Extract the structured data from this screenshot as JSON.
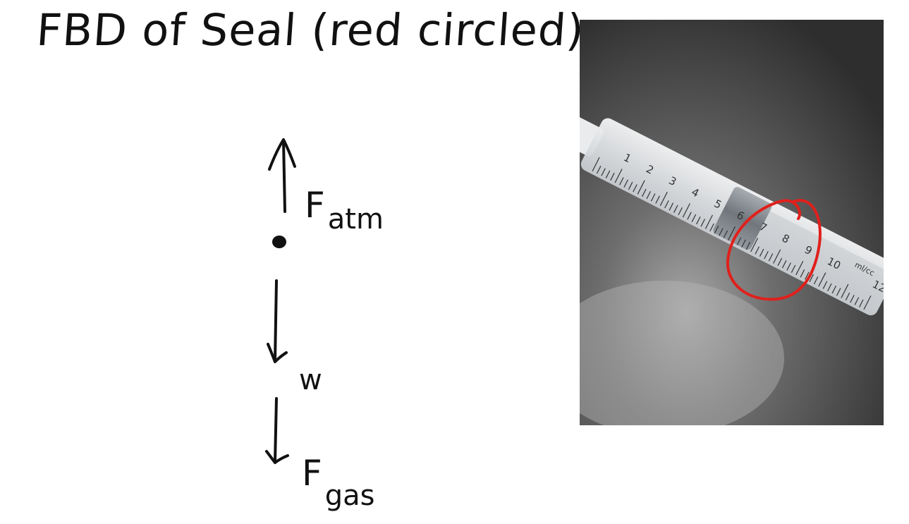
{
  "title": "FBD of Seal (red circled)",
  "forces": [
    {
      "id": "f-atm",
      "main": "F",
      "sub": "atm",
      "direction": "up"
    },
    {
      "id": "w",
      "main": "",
      "sub": "w",
      "direction": "down"
    },
    {
      "id": "f-gas",
      "main": "F",
      "sub": "gas",
      "direction": "down"
    }
  ],
  "photo": {
    "subject": "syringe-with-red-circle-on-seal",
    "scale_numbers": [
      "1",
      "2",
      "3",
      "4",
      "5",
      "6",
      "7",
      "8",
      "9",
      "10",
      "12"
    ],
    "unit": "ml/cc",
    "colors": {
      "circle": "#e0201c",
      "background": "#3a3a3a",
      "barrel": "#e6e8ea"
    }
  }
}
